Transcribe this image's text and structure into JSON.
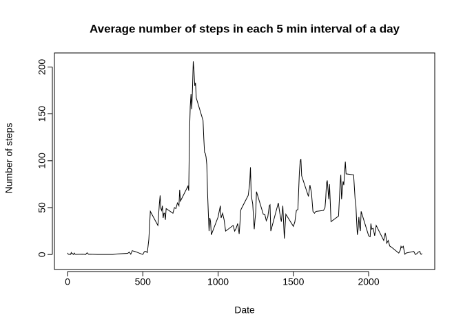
{
  "chart_data": {
    "type": "line",
    "title": "Average number of steps in each 5 min interval of a day",
    "x_label": "Date",
    "y_label": "Number of steps",
    "x": [
      0,
      5,
      10,
      15,
      20,
      25,
      30,
      35,
      40,
      45,
      50,
      55,
      100,
      110,
      120,
      130,
      140,
      150,
      200,
      230,
      300,
      330,
      400,
      410,
      420,
      430,
      440,
      450,
      500,
      510,
      520,
      530,
      540,
      550,
      600,
      610,
      615,
      620,
      625,
      630,
      635,
      640,
      645,
      650,
      655,
      700,
      710,
      720,
      730,
      740,
      745,
      750,
      800,
      805,
      810,
      815,
      820,
      825,
      830,
      835,
      840,
      845,
      850,
      855,
      900,
      905,
      910,
      915,
      920,
      925,
      930,
      935,
      940,
      945,
      950,
      955,
      1000,
      1015,
      1020,
      1030,
      1040,
      1050,
      1100,
      1110,
      1120,
      1130,
      1140,
      1145,
      1150,
      1155,
      1200,
      1210,
      1215,
      1220,
      1230,
      1240,
      1245,
      1250,
      1255,
      1300,
      1310,
      1320,
      1330,
      1340,
      1345,
      1350,
      1400,
      1410,
      1420,
      1430,
      1440,
      1450,
      1500,
      1510,
      1520,
      1530,
      1540,
      1545,
      1550,
      1555,
      1600,
      1610,
      1620,
      1630,
      1640,
      1650,
      1700,
      1710,
      1715,
      1720,
      1725,
      1730,
      1735,
      1740,
      1745,
      1750,
      1800,
      1810,
      1815,
      1820,
      1825,
      1830,
      1835,
      1845,
      1850,
      1900,
      1910,
      1915,
      1920,
      1925,
      1930,
      1935,
      1940,
      1945,
      1950,
      2000,
      2010,
      2015,
      2020,
      2030,
      2040,
      2050,
      2100,
      2110,
      2115,
      2120,
      2130,
      2140,
      2150,
      2200,
      2210,
      2215,
      2220,
      2230,
      2240,
      2250,
      2300,
      2310,
      2320,
      2330,
      2340,
      2345,
      2350,
      2355
    ],
    "series": [
      {
        "name": "steps",
        "color": "#000000",
        "values": [
          1.7,
          0.3,
          0.1,
          0.2,
          0.1,
          2.1,
          0.5,
          0.9,
          0,
          1.5,
          0.3,
          0.1,
          0.3,
          0.2,
          0,
          1.8,
          0.2,
          0.3,
          0,
          0,
          0,
          0.6,
          1.2,
          2.6,
          0.3,
          4.1,
          3.5,
          3.1,
          0,
          3,
          3.3,
          2.1,
          16,
          46,
          31,
          54,
          63,
          49,
          47,
          52,
          39,
          44,
          44,
          37,
          49,
          44,
          50,
          49,
          55,
          52,
          69,
          57,
          73,
          68,
          129,
          158,
          171,
          155,
          177,
          206,
          196,
          180,
          183,
          167,
          143,
          124,
          109,
          108,
          104,
          96,
          66,
          45,
          25,
          39,
          35,
          21,
          40,
          52,
          39,
          44,
          37,
          25,
          31,
          25,
          28,
          33,
          22,
          33,
          47,
          49,
          63,
          76,
          93,
          63,
          54,
          27,
          37,
          45,
          67,
          43,
          43,
          36,
          40,
          52,
          53,
          25,
          55,
          44,
          35,
          52,
          17,
          43,
          30,
          35,
          47,
          48,
          88,
          99,
          102,
          84,
          62,
          74,
          66,
          46,
          44,
          46,
          47,
          50,
          60,
          76,
          79,
          69,
          59,
          75,
          56,
          35,
          41,
          74,
          85,
          59,
          68,
          78,
          74,
          99,
          86,
          85,
          59,
          53,
          36,
          21,
          27,
          40,
          30,
          25,
          46,
          20,
          19,
          33,
          27,
          28,
          20,
          31,
          15,
          23,
          19,
          12,
          15,
          9,
          8,
          1.5,
          4.6,
          8.7,
          7.1,
          8.8,
          0.3,
          1.6,
          3.3,
          0,
          0.9,
          2.6,
          3.3,
          0.6,
          0.2,
          1.1
        ]
      }
    ],
    "xlim": [
      -87,
      2439
    ],
    "ylim": [
      -16,
      215
    ],
    "xticks": [
      0,
      500,
      1000,
      1500,
      2000
    ],
    "yticks": [
      0,
      50,
      100,
      150,
      200
    ]
  }
}
